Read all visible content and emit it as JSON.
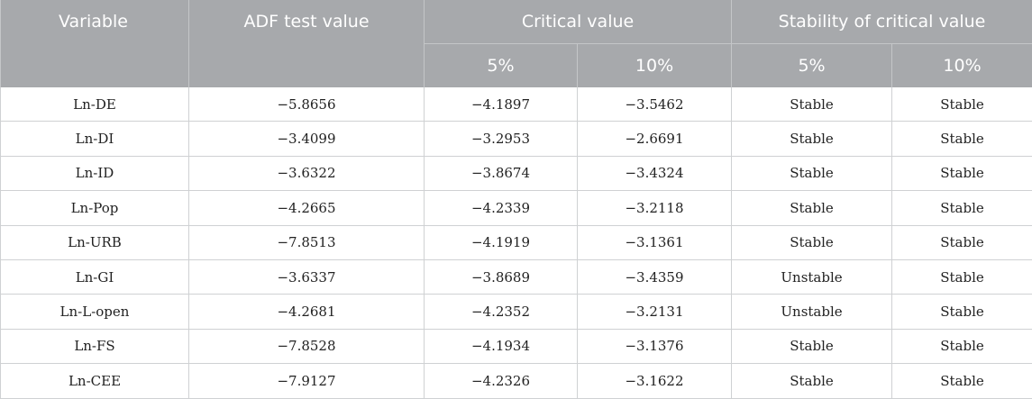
{
  "headers": {
    "variable": "Variable",
    "adf": "ADF test value",
    "critical": "Critical value",
    "stability": "Stability of critical value",
    "crit_5": "5%",
    "crit_10": "10%",
    "stab_5": "5%",
    "stab_10": "10%"
  },
  "rows": [
    [
      "Ln-DE",
      "−5.8656",
      "−4.1897",
      "−3.5462",
      "Stable",
      "Stable"
    ],
    [
      "Ln-DI",
      "−3.4099",
      "−3.2953",
      "−2.6691",
      "Stable",
      "Stable"
    ],
    [
      "Ln-ID",
      "−3.6322",
      "−3.8674",
      "−3.4324",
      "Stable",
      "Stable"
    ],
    [
      "Ln-Pop",
      "−4.2665",
      "−4.2339",
      "−3.2118",
      "Stable",
      "Stable"
    ],
    [
      "Ln-URB",
      "−7.8513",
      "−4.1919",
      "−3.1361",
      "Stable",
      "Stable"
    ],
    [
      "Ln-GI",
      "−3.6337",
      "−3.8689",
      "−3.4359",
      "Unstable",
      "Stable"
    ],
    [
      "Ln-L-open",
      "−4.2681",
      "−4.2352",
      "−3.2131",
      "Unstable",
      "Stable"
    ],
    [
      "Ln-FS",
      "−7.8528",
      "−4.1934",
      "−3.1376",
      "Stable",
      "Stable"
    ],
    [
      "Ln-CEE",
      "−7.9127",
      "−4.2326",
      "−3.1622",
      "Stable",
      "Stable"
    ]
  ]
}
